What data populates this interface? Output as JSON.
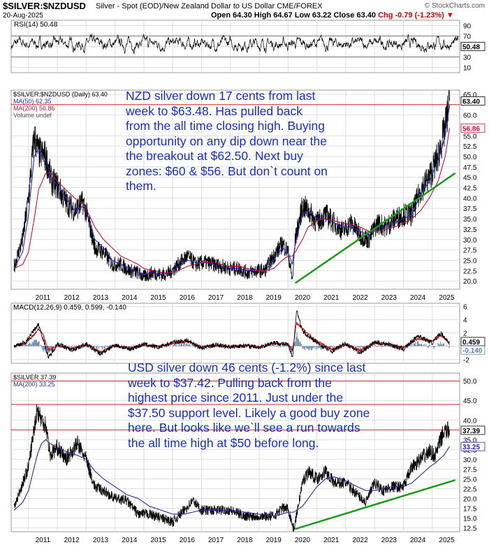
{
  "header": {
    "symbol": "$SILVER:$NZDUSD",
    "description": "Silver - Spot (EOD)/New Zealand Dollar to US Dollar  CME/FOREX",
    "date": "20-Aug-2025",
    "ohlc": "Open 64.30  High 64.67  Low 63.22  Close 63.40",
    "change": "Chg -0.79 (-1.23%) ▼",
    "brand": "© StockCharts.com"
  },
  "notes": {
    "nzd": "NZD silver down 17 cents from last week to $63.48. Has pulled back from the all time closing high. Buying opportunity on any dip down near the the breakout at $62.50. Next buy zones: $60 & $56. But don`t count on them.",
    "usd": "USD silver down 46 cents (-1.2%) since last week to $37.42. Pulling back from the highest price since 2011. Just under the $37.50 support level. Likely a good buy zone here. But looks like we`ll see a run towards the all time high at $50 before long."
  },
  "colors": {
    "price": "#000000",
    "ma50": "#1f2bd0",
    "ma200": "#c0103a",
    "ma200_usd": "#2a2aa0",
    "support_line": "#1a9a1a",
    "resistance_line": "#cc2222",
    "macd": "#000000",
    "signal": "#cc0000",
    "histogram": "#5b7fa8",
    "rsi": "#000000",
    "grid": "#dddddd"
  },
  "chart_data": [
    {
      "type": "line",
      "panel": "rsi",
      "title": "RSI(14) 50.48",
      "y_ticks": [
        "90",
        "70",
        "50",
        "30",
        "10"
      ],
      "levels": [
        70,
        30
      ],
      "last_value": "50.48",
      "ylim": [
        0,
        100
      ]
    },
    {
      "type": "line",
      "panel": "nzd",
      "legend": [
        "$SILVER:$NZDUSD (Daily) 63.40",
        "MA(50) 62.35",
        "MA(200) 56.86",
        "Volume undef"
      ],
      "x_ticks": [
        "2011",
        "2012",
        "2013",
        "2014",
        "2015",
        "2016",
        "2017",
        "2018",
        "2019",
        "2020",
        "2021",
        "2022",
        "2023",
        "2024",
        "2025"
      ],
      "y_ticks": [
        "65.0",
        "60.0",
        "55.0",
        "52.5",
        "50.0",
        "47.5",
        "45.0",
        "42.5",
        "40.0",
        "37.5",
        "35.0",
        "32.5",
        "30.0",
        "27.5",
        "25.0",
        "22.5",
        "20.0"
      ],
      "ylim": [
        18,
        66
      ],
      "x": [
        2010.5,
        2010.8,
        2011.0,
        2011.2,
        2011.35,
        2011.6,
        2011.8,
        2012.0,
        2012.3,
        2012.6,
        2012.9,
        2013.1,
        2013.3,
        2013.6,
        2013.9,
        2014.2,
        2014.5,
        2014.8,
        2015.0,
        2015.3,
        2015.6,
        2015.9,
        2016.2,
        2016.5,
        2016.8,
        2017.1,
        2017.4,
        2017.7,
        2018.0,
        2018.3,
        2018.6,
        2018.9,
        2019.2,
        2019.5,
        2019.8,
        2020.0,
        2020.15,
        2020.25,
        2020.5,
        2020.7,
        2021.0,
        2021.3,
        2021.6,
        2021.9,
        2022.2,
        2022.5,
        2022.8,
        2023.1,
        2023.4,
        2023.7,
        2024.0,
        2024.3,
        2024.6,
        2024.9,
        2025.2,
        2025.45,
        2025.6
      ],
      "price": [
        23.5,
        30,
        40,
        55,
        51,
        50,
        44,
        43,
        39,
        37,
        39,
        34,
        28,
        27,
        24,
        24,
        22.5,
        22,
        21,
        22,
        21.5,
        22,
        24,
        26,
        24,
        24.5,
        24,
        23.5,
        23,
        23,
        22,
        22.5,
        22.5,
        26,
        29,
        27,
        20,
        30,
        38,
        37,
        34,
        36,
        34,
        32,
        34,
        31,
        30,
        34,
        33,
        35,
        36,
        36,
        42,
        45,
        50,
        57,
        63.4
      ],
      "ma50": [
        23,
        27,
        36,
        50,
        52,
        49,
        45,
        43,
        40,
        37,
        38,
        35,
        30,
        28,
        25,
        24,
        23,
        22,
        21.5,
        22,
        21.5,
        22,
        23.5,
        25,
        24.5,
        24.5,
        24,
        23.5,
        23,
        23,
        22.5,
        22.5,
        22.5,
        25,
        28,
        27,
        24,
        29,
        36,
        37,
        35,
        35,
        34,
        33,
        33,
        32,
        31,
        33,
        33,
        34,
        35,
        36,
        41,
        44,
        49,
        55,
        62.35
      ],
      "ma200": [
        23,
        24,
        27,
        35,
        42,
        46,
        46,
        44,
        42,
        40,
        38.5,
        36,
        33,
        30,
        28,
        26,
        25,
        24,
        23,
        22.5,
        22,
        22,
        22.5,
        23.5,
        24,
        24.5,
        24.5,
        24,
        23.5,
        23.5,
        23,
        22.5,
        22.5,
        23,
        25,
        26,
        26,
        27,
        30,
        33,
        34.5,
        35,
        34.5,
        34,
        33.5,
        33,
        32,
        32,
        32.5,
        33,
        34,
        35,
        37,
        40,
        44,
        50,
        56.86
      ],
      "support_line": {
        "x": [
          2020.25,
          2025.8
        ],
        "y": [
          19.5,
          46
        ]
      },
      "resistance_line": {
        "y": 62.5
      },
      "last_values": [
        "63.40",
        "56.86"
      ]
    },
    {
      "type": "line",
      "panel": "macd",
      "title": "MACD(12,26,9) 0.459, 0.599, -0.140",
      "y_ticks": [
        "6",
        "4",
        "2",
        "0",
        "-2"
      ],
      "ylim": [
        -2.6,
        6.5
      ],
      "last_values": [
        "0.459",
        "-0.140"
      ],
      "x": [
        2010.5,
        2010.9,
        2011.2,
        2011.35,
        2011.5,
        2011.7,
        2012.0,
        2012.5,
        2013.0,
        2013.5,
        2014.0,
        2014.5,
        2015.0,
        2015.5,
        2016.0,
        2016.5,
        2017.0,
        2017.5,
        2018.0,
        2018.5,
        2019.0,
        2019.5,
        2020.0,
        2020.15,
        2020.3,
        2020.5,
        2021.0,
        2021.5,
        2022.0,
        2022.5,
        2023.0,
        2023.5,
        2024.0,
        2024.5,
        2025.0,
        2025.3,
        2025.6
      ],
      "macd": [
        0,
        0.6,
        2.5,
        3.3,
        1.2,
        -1.8,
        0.4,
        -0.6,
        0.3,
        -1.2,
        0.2,
        -0.5,
        0.3,
        -0.2,
        0.6,
        0.9,
        -0.3,
        0.2,
        -0.1,
        0.1,
        -0.2,
        0.6,
        0.2,
        -1.8,
        5.5,
        2.2,
        0.5,
        -0.8,
        0.4,
        -1.0,
        0.6,
        0.3,
        -0.5,
        1.6,
        0.5,
        2.0,
        0.459
      ],
      "signal": [
        0,
        0.4,
        1.8,
        2.6,
        1.8,
        -0.6,
        0.1,
        -0.4,
        0.2,
        -0.9,
        0.1,
        -0.3,
        0.2,
        -0.1,
        0.4,
        0.7,
        -0.1,
        0.1,
        -0.1,
        0.1,
        -0.1,
        0.4,
        0.3,
        -0.6,
        3.5,
        2.6,
        0.8,
        -0.5,
        0.2,
        -0.6,
        0.4,
        0.3,
        -0.2,
        1.1,
        0.7,
        1.6,
        0.599
      ]
    },
    {
      "type": "line",
      "panel": "usd",
      "legend": [
        "$SILVER 37.39",
        "MA(200) 33.25"
      ],
      "x_ticks": [
        "2011",
        "2012",
        "2013",
        "2014",
        "2015",
        "2016",
        "2017",
        "2018",
        "2019",
        "2020",
        "2021",
        "2022",
        "2023",
        "2024",
        "2025"
      ],
      "y_ticks": [
        "50.0",
        "45.0",
        "40.0",
        "35.0",
        "32.5",
        "30.0",
        "27.5",
        "25.0",
        "22.5",
        "20.0",
        "17.5",
        "15.0",
        "12.5"
      ],
      "ylim": [
        11.5,
        52
      ],
      "x": [
        2010.5,
        2010.8,
        2011.0,
        2011.3,
        2011.45,
        2011.6,
        2011.75,
        2012.0,
        2012.3,
        2012.7,
        2013.0,
        2013.3,
        2013.6,
        2014.0,
        2014.4,
        2014.8,
        2015.2,
        2015.6,
        2016.0,
        2016.4,
        2016.7,
        2017.0,
        2017.5,
        2018.0,
        2018.5,
        2019.0,
        2019.5,
        2019.8,
        2020.0,
        2020.2,
        2020.5,
        2020.7,
        2021.0,
        2021.3,
        2021.6,
        2022.0,
        2022.4,
        2022.7,
        2023.0,
        2023.3,
        2023.6,
        2024.0,
        2024.3,
        2024.6,
        2024.9,
        2025.1,
        2025.4,
        2025.6
      ],
      "price": [
        17.5,
        24,
        28,
        43,
        40,
        39,
        31,
        33,
        30,
        34,
        30,
        23,
        22,
        20,
        19.5,
        16,
        16,
        15,
        14,
        17,
        19.5,
        17,
        17,
        17,
        15.5,
        15.5,
        15.5,
        17.5,
        17.5,
        12,
        24,
        27,
        25,
        27,
        24,
        24,
        21,
        19,
        24,
        22,
        23,
        23,
        28,
        30,
        32,
        31,
        37,
        37.39
      ],
      "ma200": [
        17,
        19,
        22,
        31,
        34,
        35,
        34,
        33,
        32,
        31,
        30,
        27,
        25,
        23,
        21,
        20,
        18,
        17,
        16,
        16,
        16.5,
        17,
        17,
        17,
        16.5,
        16,
        15.5,
        16,
        16.5,
        16.5,
        18,
        20,
        23,
        25,
        25.5,
        24.5,
        23,
        22,
        22,
        22.5,
        23,
        23,
        24,
        26,
        28,
        29,
        31,
        33.25
      ],
      "support_line": {
        "x": [
          2020.25,
          2025.8
        ],
        "y": [
          12.2,
          24.7
        ]
      },
      "resistance_lines": [
        {
          "y": 50
        },
        {
          "y": 44
        },
        {
          "y": 37.5
        }
      ],
      "last_values": [
        "37.39",
        "33.25"
      ]
    }
  ]
}
